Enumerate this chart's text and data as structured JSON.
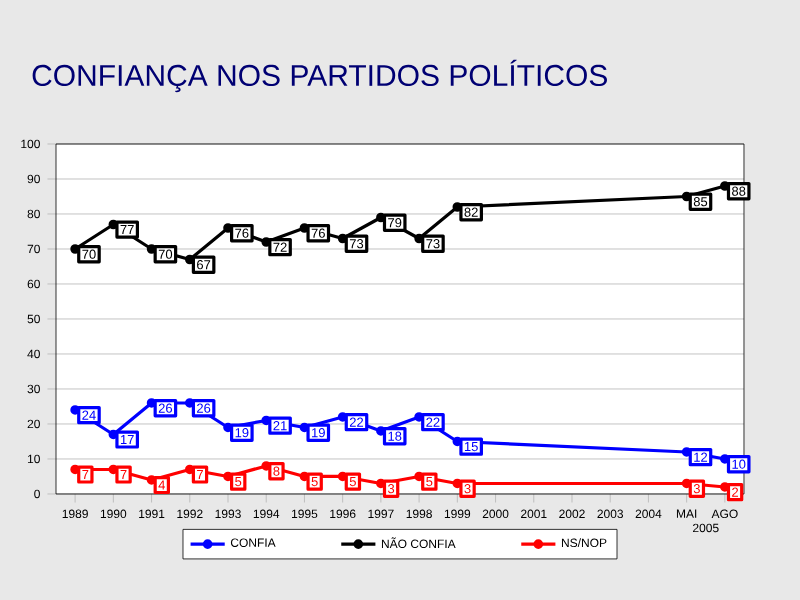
{
  "chart_data": {
    "type": "line",
    "title": "CONFIANÇA NOS PARTIDOS POLÍTICOS",
    "categories": [
      "1989",
      "1990",
      "1991",
      "1992",
      "1993",
      "1994",
      "1995",
      "1996",
      "1997",
      "1998",
      "1999",
      "2000",
      "2001",
      "2002",
      "2003",
      "2004",
      "MAI",
      "AGO"
    ],
    "series": [
      {
        "name": "CONFIA",
        "color": "#0000ff",
        "values": [
          24,
          17,
          26,
          26,
          19,
          21,
          19,
          22,
          18,
          22,
          15,
          null,
          null,
          null,
          null,
          null,
          12,
          10
        ]
      },
      {
        "name": "NÃO CONFIA",
        "color": "#000000",
        "values": [
          70,
          77,
          70,
          67,
          76,
          72,
          76,
          73,
          79,
          73,
          82,
          null,
          null,
          null,
          null,
          null,
          85,
          88
        ]
      },
      {
        "name": "NS/NOP",
        "color": "#ff0000",
        "values": [
          7,
          7,
          4,
          7,
          5,
          8,
          5,
          5,
          3,
          5,
          3,
          null,
          null,
          null,
          null,
          null,
          3,
          2
        ]
      }
    ],
    "ylim": [
      0,
      100
    ],
    "yticks": [
      0,
      10,
      20,
      30,
      40,
      50,
      60,
      70,
      80,
      90,
      100
    ],
    "grid": "y",
    "legend": "bottom",
    "marker": "circle",
    "line_style": "solid",
    "data_labels": true,
    "annotations": [
      "2005"
    ]
  }
}
